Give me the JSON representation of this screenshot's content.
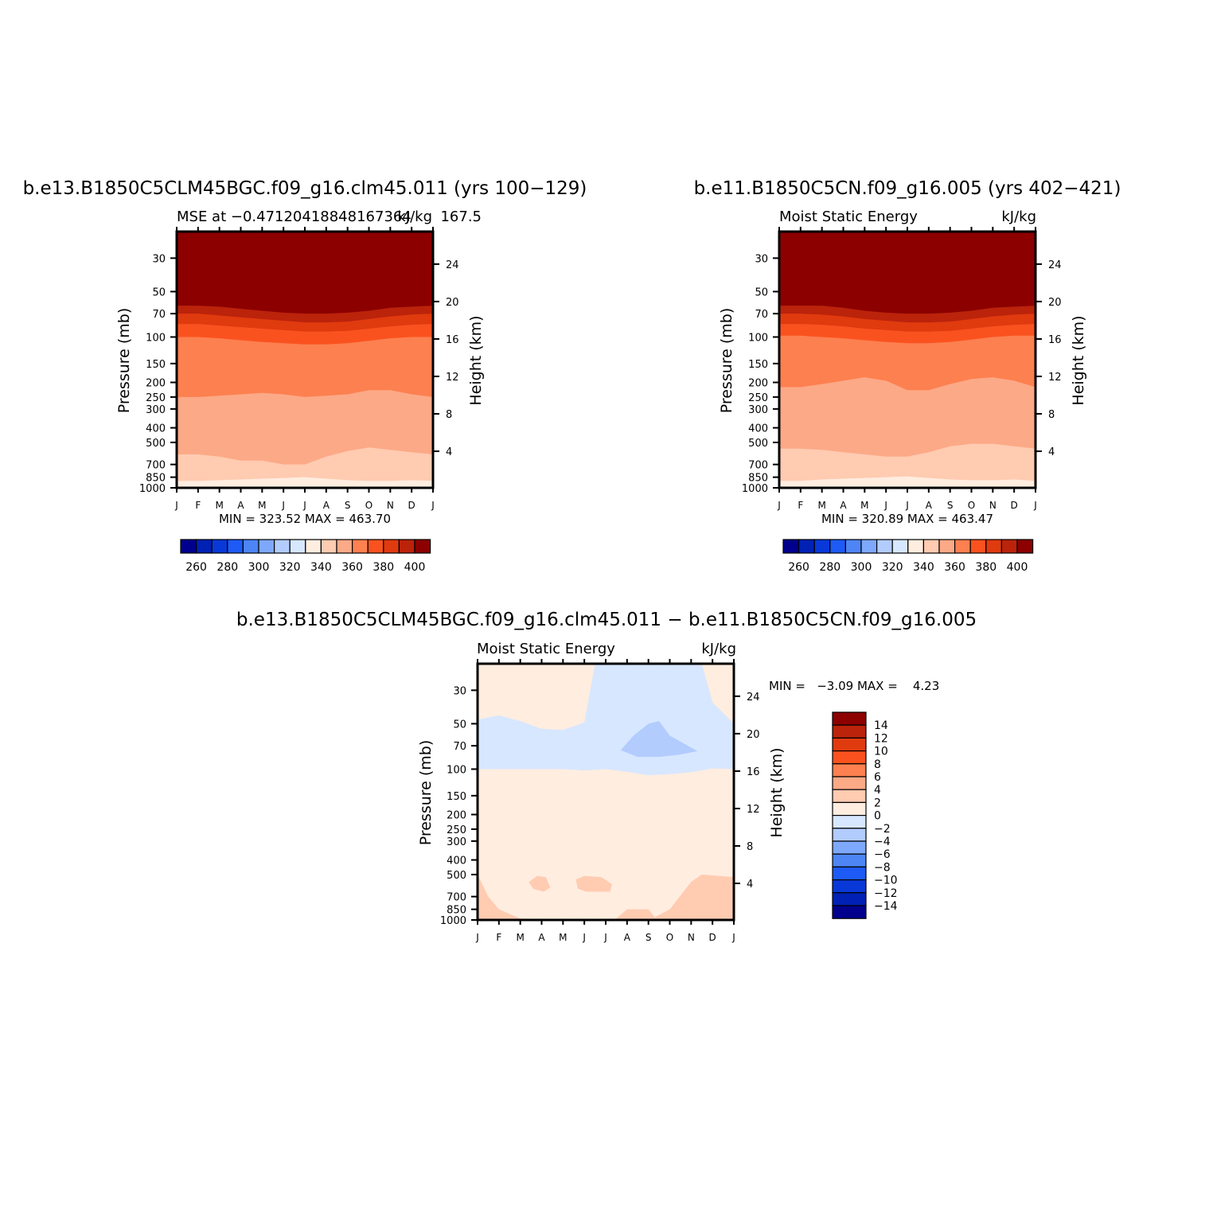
{
  "panels": [
    {
      "id": "case1",
      "main_title": "b.e13.B1850C5CLM45BGC.f09_g16.clm45.011 (yrs 100−129)",
      "left_subtitle": "MSE at −0.47120418848167364",
      "right_subtitle": "kJ/kg",
      "overlap_text": "167.5",
      "y_title_left": "Pressure (mb)",
      "y_title_right": "Height (km)",
      "min_max": "MIN = 323.52 MAX = 463.70"
    },
    {
      "id": "case2",
      "main_title": "b.e11.B1850C5CN.f09_g16.005 (yrs 402−421)",
      "left_subtitle": "Moist Static Energy",
      "right_subtitle": "kJ/kg",
      "y_title_left": "Pressure (mb)",
      "y_title_right": "Height (km)",
      "min_max": "MIN = 320.89 MAX = 463.47"
    },
    {
      "id": "diff",
      "main_title": "b.e13.B1850C5CLM45BGC.f09_g16.clm45.011 − b.e11.B1850C5CN.f09_g16.005",
      "left_subtitle": "Moist Static Energy",
      "right_subtitle": "kJ/kg",
      "y_title_left": "Pressure (mb)",
      "y_title_right": "Height (km)",
      "min_max": "MIN =   −3.09 MAX =    4.23"
    }
  ],
  "chart_data": [
    {
      "type": "heatmap",
      "title": "b.e13.B1850C5CLM45BGC.f09_g16.clm45.011 (yrs 100−129)",
      "x_categories": [
        "J",
        "F",
        "M",
        "A",
        "M",
        "J",
        "J",
        "A",
        "S",
        "O",
        "N",
        "D",
        "J"
      ],
      "y_pressure_ticks": [
        "30",
        "50",
        "70",
        "100",
        "150",
        "200",
        "250",
        "300",
        "400",
        "500",
        "700",
        "850",
        "1000"
      ],
      "y_height_ticks": [
        "24",
        "20",
        "16",
        "12",
        "8",
        "4"
      ],
      "ylim_mb": [
        1000,
        20
      ],
      "units": "kJ/kg",
      "min": 323.52,
      "max": 463.7,
      "contour_base": 320,
      "contour_interval": 10,
      "layers": [
        {
          "level": 330,
          "top_mb": [
            900,
            900,
            890,
            880,
            870,
            860,
            850,
            870,
            890,
            900,
            900,
            890,
            900
          ]
        },
        {
          "level": 340,
          "top_mb": [
            600,
            600,
            620,
            660,
            660,
            700,
            700,
            620,
            570,
            540,
            560,
            580,
            600
          ]
        },
        {
          "level": 350,
          "top_mb": [
            250,
            250,
            245,
            240,
            235,
            240,
            250,
            245,
            240,
            225,
            225,
            240,
            250
          ]
        },
        {
          "level": 360,
          "top_mb": [
            100,
            100,
            102,
            105,
            108,
            110,
            112,
            112,
            110,
            106,
            102,
            100,
            100
          ]
        },
        {
          "level": 370,
          "top_mb": [
            82,
            82,
            84,
            86,
            88,
            90,
            92,
            92,
            91,
            88,
            85,
            83,
            82
          ]
        },
        {
          "level": 380,
          "top_mb": [
            70,
            70,
            72,
            74,
            76,
            78,
            80,
            80,
            79,
            76,
            73,
            71,
            70
          ]
        },
        {
          "level": 390,
          "top_mb": [
            62,
            62,
            63,
            65,
            67,
            69,
            70,
            70,
            69,
            67,
            64,
            63,
            62
          ]
        },
        {
          "level": 400,
          "top_mb": [
            54,
            54,
            54,
            56,
            58,
            60,
            61,
            61,
            60,
            58,
            56,
            55,
            54
          ]
        },
        {
          "level": 410,
          "top_mb": [
            48,
            48,
            47,
            48,
            51,
            53,
            54,
            54,
            53,
            51,
            49,
            48,
            48
          ]
        }
      ]
    },
    {
      "type": "heatmap",
      "title": "b.e11.B1850C5CN.f09_g16.005 (yrs 402−421)",
      "x_categories": [
        "J",
        "F",
        "M",
        "A",
        "M",
        "J",
        "J",
        "A",
        "S",
        "O",
        "N",
        "D",
        "J"
      ],
      "y_pressure_ticks": [
        "30",
        "50",
        "70",
        "100",
        "150",
        "200",
        "250",
        "300",
        "400",
        "500",
        "700",
        "850",
        "1000"
      ],
      "y_height_ticks": [
        "24",
        "20",
        "16",
        "12",
        "8",
        "4"
      ],
      "ylim_mb": [
        1000,
        20
      ],
      "units": "kJ/kg",
      "min": 320.89,
      "max": 463.47,
      "contour_base": 320,
      "contour_interval": 10,
      "layers": [
        {
          "level": 330,
          "top_mb": [
            900,
            900,
            880,
            870,
            860,
            850,
            840,
            860,
            880,
            890,
            890,
            880,
            900
          ]
        },
        {
          "level": 340,
          "top_mb": [
            550,
            550,
            560,
            580,
            600,
            620,
            620,
            580,
            530,
            510,
            510,
            530,
            550
          ]
        },
        {
          "level": 350,
          "top_mb": [
            215,
            215,
            205,
            195,
            185,
            195,
            225,
            225,
            205,
            190,
            185,
            195,
            215
          ]
        },
        {
          "level": 360,
          "top_mb": [
            98,
            98,
            100,
            102,
            105,
            108,
            110,
            110,
            108,
            104,
            100,
            98,
            98
          ]
        },
        {
          "level": 370,
          "top_mb": [
            82,
            82,
            83,
            85,
            88,
            90,
            92,
            92,
            91,
            88,
            85,
            83,
            82
          ]
        },
        {
          "level": 380,
          "top_mb": [
            70,
            70,
            71,
            73,
            76,
            78,
            80,
            80,
            79,
            76,
            73,
            71,
            70
          ]
        },
        {
          "level": 390,
          "top_mb": [
            62,
            62,
            62,
            64,
            67,
            69,
            70,
            70,
            69,
            67,
            64,
            63,
            62
          ]
        },
        {
          "level": 400,
          "top_mb": [
            54,
            54,
            54,
            56,
            58,
            60,
            61,
            61,
            60,
            58,
            56,
            55,
            54
          ]
        },
        {
          "level": 410,
          "top_mb": [
            48,
            48,
            47,
            48,
            51,
            53,
            54,
            54,
            53,
            51,
            49,
            48,
            48
          ]
        }
      ]
    },
    {
      "type": "heatmap",
      "title": "b.e13.B1850C5CLM45BGC.f09_g16.clm45.011 − b.e11.B1850C5CN.f09_g16.005",
      "x_categories": [
        "J",
        "F",
        "M",
        "A",
        "M",
        "J",
        "J",
        "A",
        "S",
        "O",
        "N",
        "D",
        "J"
      ],
      "y_pressure_ticks": [
        "30",
        "50",
        "70",
        "100",
        "150",
        "200",
        "250",
        "300",
        "400",
        "500",
        "700",
        "850",
        "1000"
      ],
      "y_height_ticks": [
        "24",
        "20",
        "16",
        "12",
        "8",
        "4"
      ],
      "ylim_mb": [
        1000,
        20
      ],
      "units": "kJ/kg",
      "min": -3.09,
      "max": 4.23,
      "contour_levels": [
        -14,
        -12,
        -10,
        -8,
        -6,
        -4,
        -2,
        0,
        2,
        4,
        6,
        8,
        10,
        12,
        14
      ],
      "background_level": 1,
      "regions": [
        {
          "value": -1,
          "points": [
            [
              0,
              47
            ],
            [
              1,
              44
            ],
            [
              2,
              48
            ],
            [
              3,
              54
            ],
            [
              4,
              55
            ],
            [
              5,
              49
            ],
            [
              5.5,
              20
            ],
            [
              10.5,
              20
            ],
            [
              11,
              36
            ],
            [
              12,
              50
            ],
            [
              12,
              100
            ],
            [
              11,
              99
            ],
            [
              10,
              105
            ],
            [
              9,
              108
            ],
            [
              8,
              110
            ],
            [
              7,
              104
            ],
            [
              6,
              100
            ],
            [
              5,
              102
            ],
            [
              4,
              100
            ],
            [
              3,
              100
            ],
            [
              2,
              100
            ],
            [
              1,
              100
            ],
            [
              0,
              100
            ]
          ]
        },
        {
          "value": -3,
          "points": [
            [
              6.7,
              75
            ],
            [
              7.3,
              60
            ],
            [
              8,
              50
            ],
            [
              8.5,
              48
            ],
            [
              9,
              60
            ],
            [
              10.3,
              76
            ],
            [
              9.5,
              80
            ],
            [
              8.5,
              83
            ],
            [
              7.5,
              83
            ]
          ]
        },
        {
          "value": 3,
          "points": [
            [
              0,
              500
            ],
            [
              0.5,
              700
            ],
            [
              1,
              850
            ],
            [
              2,
              980
            ],
            [
              5,
              1000
            ],
            [
              6.5,
              980
            ],
            [
              7,
              850
            ],
            [
              8,
              850
            ],
            [
              8.3,
              960
            ],
            [
              9,
              850
            ],
            [
              10,
              560
            ],
            [
              10.5,
              500
            ],
            [
              12,
              520
            ],
            [
              12,
              1000
            ],
            [
              0,
              1000
            ]
          ]
        },
        {
          "value": 3,
          "points": [
            [
              2.4,
              560
            ],
            [
              2.8,
              510
            ],
            [
              3.2,
              520
            ],
            [
              3.4,
              610
            ],
            [
              3.1,
              650
            ],
            [
              2.6,
              620
            ]
          ]
        },
        {
          "value": 3,
          "points": [
            [
              4.6,
              540
            ],
            [
              5,
              510
            ],
            [
              5.8,
              520
            ],
            [
              6.3,
              580
            ],
            [
              6.2,
              650
            ],
            [
              5.1,
              650
            ],
            [
              4.7,
              620
            ]
          ]
        }
      ]
    }
  ],
  "colorbars": {
    "abs_labels": [
      "260",
      "280",
      "300",
      "320",
      "340",
      "360",
      "380",
      "400"
    ],
    "diff_labels": [
      "14",
      "12",
      "10",
      "8",
      "6",
      "4",
      "2",
      "0",
      "−2",
      "−4",
      "−6",
      "−8",
      "−10",
      "−12",
      "−14"
    ],
    "colors": [
      "#00008c",
      "#0021b4",
      "#0839d8",
      "#1e5af5",
      "#4d85f5",
      "#7ea8fb",
      "#b2ccfe",
      "#d7e7ff",
      "#ffede0",
      "#ffcbb1",
      "#fca987",
      "#fd8050",
      "#fa521f",
      "#e03a0f",
      "#bb230b",
      "#8c0000"
    ]
  }
}
